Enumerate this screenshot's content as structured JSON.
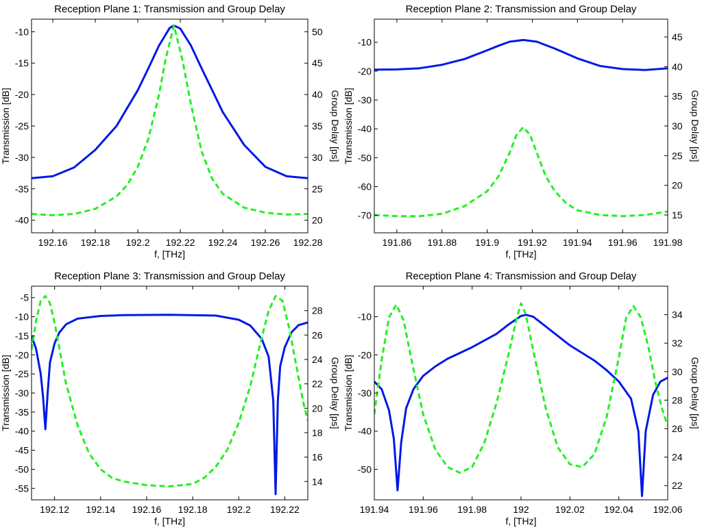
{
  "colors": {
    "transmission": "#0018e6",
    "group_delay": "#22f022"
  },
  "chart_data": [
    {
      "type": "line",
      "title": "Reception Plane 1: Transmission and Group Delay",
      "xlabel": "f, [THz]",
      "ylabel": "Transmission [dB]",
      "y2label": "Group Delay [ps]",
      "xlim": [
        192.15,
        192.28
      ],
      "ylim": [
        -42,
        -8
      ],
      "y2lim": [
        18,
        52
      ],
      "xticks": [
        192.16,
        192.18,
        192.2,
        192.22,
        192.24,
        192.26,
        192.28
      ],
      "xtick_labels": [
        "192.16",
        "192.18",
        "192.2",
        "192.22",
        "192.24",
        "192.26",
        "192.28"
      ],
      "yticks": [
        -10,
        -15,
        -20,
        -25,
        -30,
        -35,
        -40
      ],
      "ytick_labels": [
        "-10",
        "-15",
        "-20",
        "-25",
        "-30",
        "-35",
        "-40"
      ],
      "y2ticks": [
        50,
        45,
        40,
        35,
        30,
        25,
        20
      ],
      "y2tick_labels": [
        "50",
        "45",
        "40",
        "35",
        "30",
        "25",
        "20"
      ],
      "series": [
        {
          "axis": "left",
          "style": "solid",
          "x": [
            192.15,
            192.16,
            192.17,
            192.18,
            192.19,
            192.2,
            192.205,
            192.21,
            192.215,
            192.217,
            192.22,
            192.225,
            192.23,
            192.24,
            192.25,
            192.26,
            192.27,
            192.28
          ],
          "y": [
            -33.3,
            -33.0,
            -31.6,
            -28.8,
            -25.0,
            -19.3,
            -15.8,
            -12.2,
            -9.4,
            -9.0,
            -9.5,
            -12.2,
            -15.8,
            -22.8,
            -28.0,
            -31.5,
            -33.0,
            -33.3
          ]
        },
        {
          "axis": "right",
          "style": "dashed",
          "x": [
            192.15,
            192.16,
            192.17,
            192.18,
            192.19,
            192.195,
            192.2,
            192.205,
            192.21,
            192.213,
            192.217,
            192.221,
            192.225,
            192.23,
            192.235,
            192.24,
            192.25,
            192.26,
            192.27,
            192.28
          ],
          "y": [
            21.0,
            20.8,
            21.0,
            21.8,
            23.8,
            25.6,
            28.5,
            33.0,
            40.0,
            45.5,
            51.0,
            45.5,
            38.5,
            31.0,
            26.6,
            24.2,
            22.0,
            21.2,
            20.9,
            21.0
          ]
        }
      ]
    },
    {
      "type": "line",
      "title": "Reception Plane 2: Transmission and Group Delay",
      "xlabel": "f, [THz]",
      "ylabel": "Transmission [dB]",
      "y2label": "Group Delay [ps]",
      "xlim": [
        191.85,
        191.98
      ],
      "ylim": [
        -76,
        -2
      ],
      "y2lim": [
        12,
        48
      ],
      "xticks": [
        191.86,
        191.88,
        191.9,
        191.92,
        191.94,
        191.96,
        191.98
      ],
      "xtick_labels": [
        "191.86",
        "191.88",
        "191.9",
        "191.92",
        "191.94",
        "191.96",
        "191.98"
      ],
      "yticks": [
        -10,
        -20,
        -30,
        -40,
        -50,
        -60,
        -70
      ],
      "ytick_labels": [
        "-10",
        "-20",
        "-30",
        "-40",
        "-50",
        "-60",
        "-70"
      ],
      "y2ticks": [
        45,
        40,
        35,
        30,
        25,
        20,
        15
      ],
      "y2tick_labels": [
        "45",
        "40",
        "35",
        "30",
        "25",
        "20",
        "15"
      ],
      "series": [
        {
          "axis": "left",
          "style": "solid",
          "x": [
            191.85,
            191.86,
            191.87,
            191.88,
            191.89,
            191.9,
            191.905,
            191.91,
            191.916,
            191.922,
            191.93,
            191.94,
            191.95,
            191.96,
            191.97,
            191.98
          ],
          "y": [
            -19.5,
            -19.4,
            -19.0,
            -17.8,
            -15.8,
            -12.8,
            -11.2,
            -9.8,
            -9.2,
            -9.8,
            -12.2,
            -15.6,
            -18.2,
            -19.3,
            -19.6,
            -19.0
          ]
        },
        {
          "axis": "right",
          "style": "dashed",
          "x": [
            191.85,
            191.86,
            191.87,
            191.88,
            191.89,
            191.9,
            191.905,
            191.91,
            191.913,
            191.916,
            191.919,
            191.922,
            191.926,
            191.93,
            191.935,
            191.94,
            191.95,
            191.96,
            191.97,
            191.98
          ],
          "y": [
            15.0,
            14.8,
            14.8,
            15.2,
            16.5,
            19.0,
            21.5,
            25.5,
            28.5,
            29.8,
            28.5,
            25.5,
            21.5,
            19.0,
            17.0,
            15.8,
            15.0,
            14.8,
            15.0,
            15.6
          ]
        }
      ]
    },
    {
      "type": "line",
      "title": "Reception Plane 3: Transmission and Group Delay",
      "xlabel": "f, [THz]",
      "ylabel": "Transmission [dB]",
      "y2label": "Group Delay [ps]",
      "xlim": [
        192.11,
        192.23
      ],
      "ylim": [
        -58,
        -2
      ],
      "y2lim": [
        12.5,
        30
      ],
      "xticks": [
        192.12,
        192.14,
        192.16,
        192.18,
        192.2,
        192.22
      ],
      "xtick_labels": [
        "192.12",
        "192.14",
        "192.16",
        "192.18",
        "192.2",
        "192.22"
      ],
      "yticks": [
        -5,
        -10,
        -15,
        -20,
        -25,
        -30,
        -35,
        -40,
        -45,
        -50,
        -55
      ],
      "ytick_labels": [
        "-5",
        "-10",
        "-15",
        "-20",
        "-25",
        "-30",
        "-35",
        "-40",
        "-45",
        "-50",
        "-55"
      ],
      "y2ticks": [
        28,
        26,
        24,
        22,
        20,
        18,
        16,
        14
      ],
      "y2tick_labels": [
        "28",
        "26",
        "24",
        "22",
        "20",
        "18",
        "16",
        "14"
      ],
      "series": [
        {
          "axis": "left",
          "style": "solid",
          "x": [
            192.11,
            192.112,
            192.114,
            192.115,
            192.116,
            192.117,
            192.118,
            192.12,
            192.122,
            192.125,
            192.13,
            192.14,
            192.15,
            192.17,
            192.19,
            192.2,
            192.205,
            192.21,
            192.213,
            192.215,
            192.216,
            192.217,
            192.218,
            192.22,
            192.223,
            192.226,
            192.23
          ],
          "y": [
            -15.0,
            -18.5,
            -25.0,
            -31.0,
            -39.5,
            -30.0,
            -22.0,
            -17.0,
            -14.2,
            -12.0,
            -10.5,
            -9.8,
            -9.6,
            -9.5,
            -9.7,
            -10.8,
            -12.3,
            -15.8,
            -20.5,
            -32.0,
            -56.5,
            -32.0,
            -23.0,
            -18.0,
            -14.0,
            -12.2,
            -11.5
          ]
        },
        {
          "axis": "right",
          "style": "dashed",
          "x": [
            192.11,
            192.112,
            192.114,
            192.116,
            192.118,
            192.12,
            192.125,
            192.13,
            192.135,
            192.14,
            192.145,
            192.15,
            192.16,
            192.17,
            192.18,
            192.185,
            192.19,
            192.195,
            192.2,
            192.205,
            192.21,
            192.213,
            192.216,
            192.219,
            192.222,
            192.225,
            192.228,
            192.23
          ],
          "y": [
            24.8,
            27.2,
            28.8,
            29.2,
            28.6,
            27.0,
            22.0,
            18.6,
            16.3,
            15.0,
            14.3,
            14.0,
            13.7,
            13.6,
            13.8,
            14.3,
            15.2,
            16.6,
            18.8,
            21.8,
            25.8,
            28.0,
            29.2,
            28.8,
            26.5,
            23.5,
            20.5,
            19.0
          ]
        }
      ]
    },
    {
      "type": "line",
      "title": "Reception Plane 4: Transmission and Group Delay",
      "xlabel": "f, [THz]",
      "ylabel": "Transmission [dB]",
      "y2label": "Group Delay [ps]",
      "xlim": [
        191.94,
        192.06
      ],
      "ylim": [
        -58,
        -2
      ],
      "y2lim": [
        21,
        36
      ],
      "xticks": [
        191.94,
        191.96,
        191.98,
        192,
        192.02,
        192.04,
        192.06
      ],
      "xtick_labels": [
        "191.94",
        "191.96",
        "191.98",
        "192",
        "192.02",
        "192.04",
        "192.06"
      ],
      "yticks": [
        -10,
        -20,
        -30,
        -40,
        -50
      ],
      "ytick_labels": [
        "-10",
        "-20",
        "-30",
        "-40",
        "-50"
      ],
      "y2ticks": [
        34,
        32,
        30,
        28,
        26,
        24,
        22
      ],
      "y2tick_labels": [
        "34",
        "32",
        "30",
        "28",
        "26",
        "24",
        "22"
      ],
      "series": [
        {
          "axis": "left",
          "style": "solid",
          "x": [
            191.94,
            191.943,
            191.946,
            191.948,
            191.9495,
            191.951,
            191.953,
            191.956,
            191.96,
            191.965,
            191.97,
            191.98,
            191.99,
            191.995,
            192.0,
            192.002,
            192.005,
            192.01,
            192.02,
            192.03,
            192.035,
            192.04,
            192.045,
            192.048,
            192.0495,
            192.051,
            192.054,
            192.057,
            192.06
          ],
          "y": [
            -27.0,
            -29.0,
            -34.5,
            -42.0,
            -55.5,
            -43.0,
            -34.0,
            -29.0,
            -25.5,
            -23.0,
            -21.0,
            -18.0,
            -14.5,
            -12.0,
            -9.8,
            -9.5,
            -10.0,
            -12.5,
            -17.5,
            -21.5,
            -24.0,
            -27.0,
            -31.5,
            -40.0,
            -57.0,
            -40.0,
            -30.5,
            -27.0,
            -26.0
          ]
        },
        {
          "axis": "right",
          "style": "dashed",
          "x": [
            191.94,
            191.943,
            191.946,
            191.949,
            191.952,
            191.955,
            191.96,
            191.965,
            191.97,
            191.975,
            191.98,
            191.985,
            191.99,
            191.995,
            191.998,
            192.0,
            192.002,
            192.005,
            192.01,
            192.015,
            192.02,
            192.025,
            192.03,
            192.035,
            192.04,
            192.043,
            192.046,
            192.049,
            192.052,
            192.055,
            192.058,
            192.06
          ],
          "y": [
            27.0,
            30.8,
            33.8,
            34.7,
            33.6,
            31.0,
            27.0,
            24.5,
            23.3,
            22.9,
            23.3,
            25.0,
            27.8,
            31.3,
            33.6,
            34.8,
            34.0,
            31.5,
            27.5,
            24.7,
            23.5,
            23.3,
            24.2,
            26.8,
            31.0,
            33.8,
            34.6,
            33.8,
            31.8,
            29.2,
            27.2,
            26.2
          ]
        }
      ]
    }
  ]
}
